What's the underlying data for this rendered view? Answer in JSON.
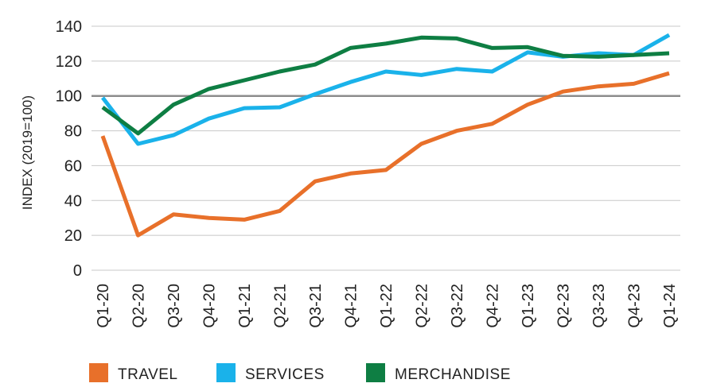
{
  "chart_data": {
    "type": "line",
    "ylabel": "INDEX (2019=100)",
    "ylim": [
      0,
      140
    ],
    "yticks": [
      0,
      20,
      40,
      60,
      80,
      100,
      120,
      140
    ],
    "reference_line": 100,
    "grid": true,
    "legend_position": "bottom",
    "categories": [
      "Q1-20",
      "Q2-20",
      "Q3-20",
      "Q4-20",
      "Q1-21",
      "Q2-21",
      "Q3-21",
      "Q4-21",
      "Q1-22",
      "Q2-22",
      "Q3-22",
      "Q4-22",
      "Q1-23",
      "Q2-23",
      "Q3-23",
      "Q4-23",
      "Q1-24"
    ],
    "series": [
      {
        "name": "TRAVEL",
        "color": "#e8702a",
        "values": [
          77,
          20,
          32,
          30,
          29,
          34,
          51,
          55.5,
          57.5,
          72.5,
          80,
          84,
          95,
          102.5,
          105.5,
          107,
          113
        ]
      },
      {
        "name": "SERVICES",
        "color": "#1ab2ea",
        "values": [
          99,
          72.5,
          77.5,
          87,
          93,
          93.5,
          101,
          108,
          114,
          112,
          115.5,
          114,
          125,
          122.5,
          124.5,
          123.5,
          135
        ]
      },
      {
        "name": "MERCHANDISE",
        "color": "#0e7e43",
        "values": [
          93.5,
          78.5,
          95,
          104,
          109,
          114,
          118,
          127.5,
          130,
          133.5,
          133,
          127.5,
          128,
          123,
          122.5,
          123.5,
          124.5
        ]
      }
    ]
  }
}
